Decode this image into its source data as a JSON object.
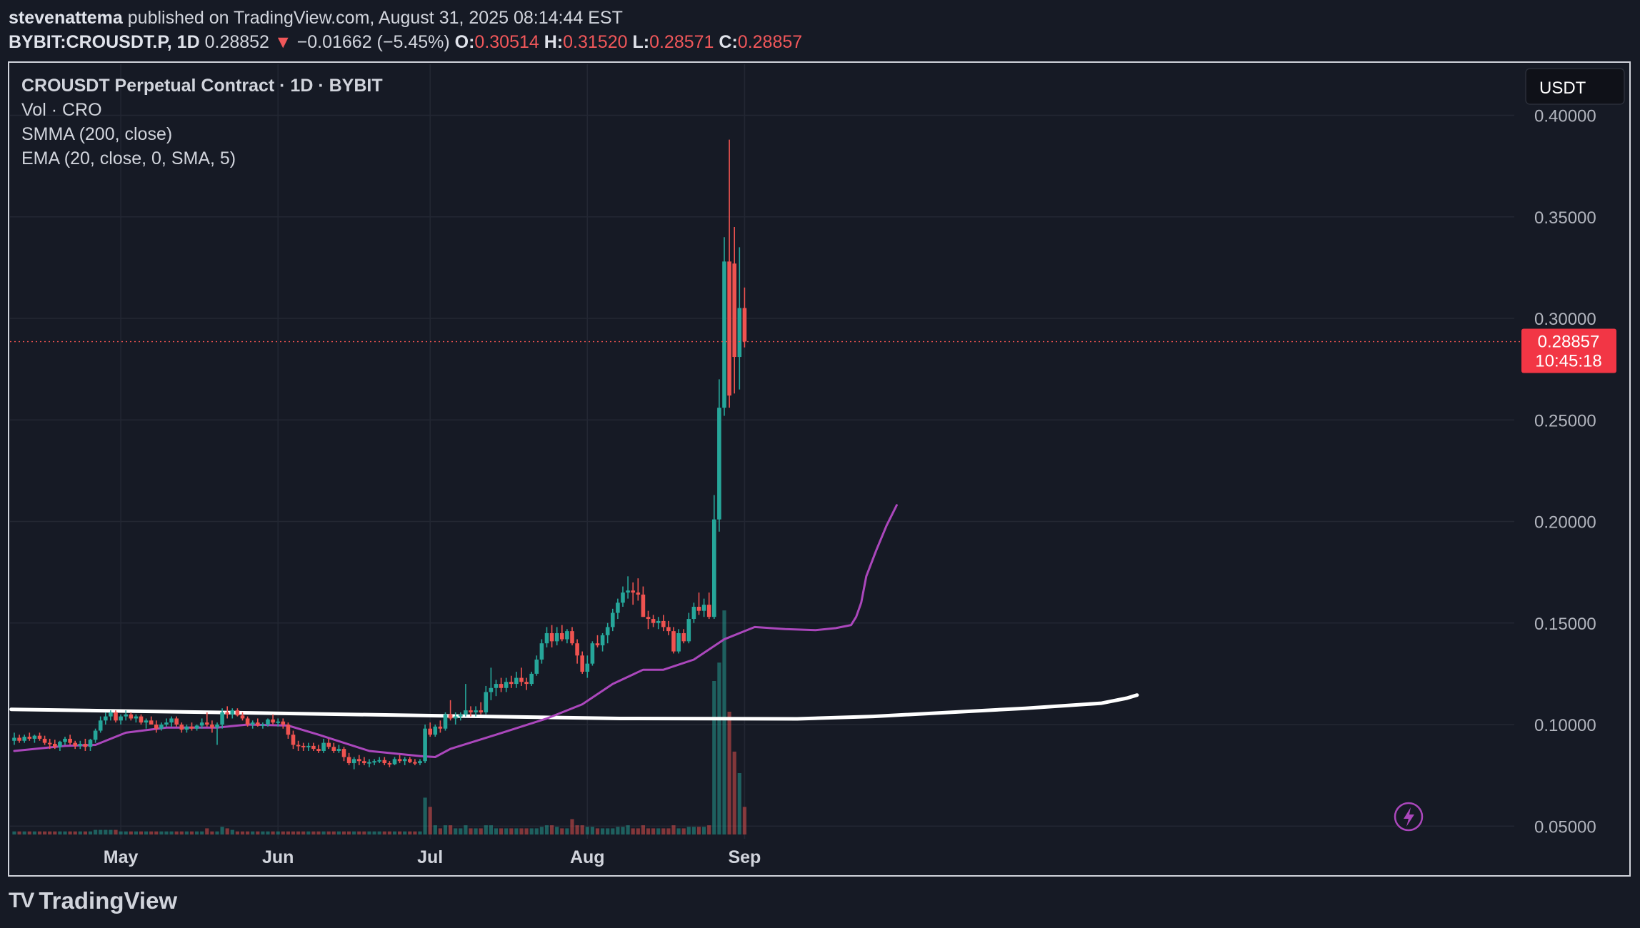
{
  "header": {
    "author": "stevenattema",
    "published": "published on TradingView.com, August 31, 2025 08:14:44 EST",
    "symbol": "BYBIT:CROUSDT.P, 1D",
    "last": "0.28852",
    "arrow": "▼",
    "change": "−0.01662 (−5.45%)",
    "o_label": "O:",
    "o_value": "0.30514",
    "h_label": "H:",
    "h_value": "0.31520",
    "l_label": "L:",
    "l_value": "0.28571",
    "c_label": "C:",
    "c_value": "0.28857"
  },
  "legend": {
    "title": "CROUSDT Perpetual Contract · 1D · BYBIT",
    "volume": "Vol · CRO",
    "smma": "SMMA (200, close)",
    "ema": "EMA (20, close, 0, SMA, 5)"
  },
  "currency_button": "USDT",
  "price_tag": {
    "price": "0.28857",
    "countdown": "10:45:18"
  },
  "footer": {
    "brand": "TradingView"
  },
  "colors": {
    "bull": "#26a69a",
    "bear": "#ef5350",
    "smma": "#ffffff",
    "ema": "#ab47bc",
    "background": "#161a25",
    "grid": "#232733",
    "text": "#d1d4dc"
  },
  "chart_data": {
    "type": "candlestick",
    "title": "CROUSDT Perpetual Contract · 1D · BYBIT",
    "y_ticks": [
      "0.40000",
      "0.35000",
      "0.30000",
      "0.25000",
      "0.20000",
      "0.15000",
      "0.10000",
      "0.05000"
    ],
    "y_values": [
      0.4,
      0.35,
      0.3,
      0.25,
      0.2,
      0.15,
      0.1,
      0.05
    ],
    "x_ticks": [
      {
        "label": "May",
        "date": "2025-05-01"
      },
      {
        "label": "Jun",
        "date": "2025-06-01"
      },
      {
        "label": "Jul",
        "date": "2025-07-01"
      },
      {
        "label": "Aug",
        "date": "2025-08-01"
      },
      {
        "label": "Sep",
        "date": "2025-09-01"
      }
    ],
    "start_date": "2025-04-10",
    "last_close": 0.28857,
    "candles": [
      [
        0.092,
        0.096,
        0.09,
        0.0935,
        1
      ],
      [
        0.0935,
        0.095,
        0.091,
        0.092,
        1
      ],
      [
        0.092,
        0.095,
        0.091,
        0.094,
        1
      ],
      [
        0.094,
        0.096,
        0.092,
        0.093,
        1
      ],
      [
        0.093,
        0.095,
        0.091,
        0.0945,
        1
      ],
      [
        0.0945,
        0.096,
        0.092,
        0.093,
        1
      ],
      [
        0.093,
        0.0945,
        0.09,
        0.091,
        1
      ],
      [
        0.091,
        0.093,
        0.088,
        0.0905,
        1
      ],
      [
        0.0905,
        0.0925,
        0.088,
        0.089,
        1
      ],
      [
        0.089,
        0.092,
        0.087,
        0.0915,
        1
      ],
      [
        0.0915,
        0.094,
        0.09,
        0.093,
        1
      ],
      [
        0.093,
        0.095,
        0.09,
        0.091,
        1
      ],
      [
        0.091,
        0.092,
        0.088,
        0.0895,
        1
      ],
      [
        0.0895,
        0.092,
        0.088,
        0.0905,
        1
      ],
      [
        0.0905,
        0.093,
        0.087,
        0.089,
        1
      ],
      [
        0.089,
        0.093,
        0.087,
        0.0925,
        1
      ],
      [
        0.0925,
        0.098,
        0.091,
        0.097,
        1.5
      ],
      [
        0.097,
        0.104,
        0.096,
        0.102,
        1.5
      ],
      [
        0.102,
        0.106,
        0.1,
        0.104,
        1.5
      ],
      [
        0.104,
        0.107,
        0.102,
        0.106,
        1.5
      ],
      [
        0.106,
        0.107,
        0.101,
        0.102,
        1.5
      ],
      [
        0.102,
        0.105,
        0.1,
        0.104,
        1
      ],
      [
        0.104,
        0.107,
        0.102,
        0.105,
        1
      ],
      [
        0.105,
        0.106,
        0.102,
        0.103,
        1
      ],
      [
        0.103,
        0.105,
        0.101,
        0.104,
        1
      ],
      [
        0.104,
        0.105,
        0.1,
        0.101,
        1
      ],
      [
        0.101,
        0.103,
        0.098,
        0.102,
        1
      ],
      [
        0.102,
        0.104,
        0.1,
        0.1,
        1
      ],
      [
        0.1,
        0.102,
        0.096,
        0.098,
        1
      ],
      [
        0.098,
        0.101,
        0.097,
        0.1,
        1
      ],
      [
        0.1,
        0.103,
        0.099,
        0.101,
        1
      ],
      [
        0.101,
        0.104,
        0.099,
        0.103,
        1
      ],
      [
        0.103,
        0.104,
        0.099,
        0.1,
        1
      ],
      [
        0.1,
        0.101,
        0.096,
        0.0975,
        1
      ],
      [
        0.0975,
        0.1,
        0.096,
        0.099,
        1
      ],
      [
        0.099,
        0.101,
        0.097,
        0.098,
        1
      ],
      [
        0.098,
        0.1,
        0.097,
        0.0995,
        1
      ],
      [
        0.0995,
        0.103,
        0.098,
        0.101,
        1
      ],
      [
        0.101,
        0.106,
        0.099,
        0.1,
        2
      ],
      [
        0.1,
        0.102,
        0.096,
        0.0985,
        1
      ],
      [
        0.0985,
        0.101,
        0.09,
        0.1,
        1
      ],
      [
        0.1,
        0.108,
        0.098,
        0.106,
        2.5
      ],
      [
        0.106,
        0.109,
        0.103,
        0.105,
        2
      ],
      [
        0.105,
        0.108,
        0.103,
        0.107,
        1.5
      ],
      [
        0.107,
        0.108,
        0.104,
        0.1045,
        1
      ],
      [
        0.1045,
        0.106,
        0.102,
        0.103,
        1
      ],
      [
        0.103,
        0.104,
        0.099,
        0.1,
        1
      ],
      [
        0.1,
        0.102,
        0.098,
        0.101,
        1
      ],
      [
        0.101,
        0.103,
        0.099,
        0.0995,
        1
      ],
      [
        0.0995,
        0.101,
        0.098,
        0.1,
        1
      ],
      [
        0.1,
        0.103,
        0.099,
        0.1025,
        1
      ],
      [
        0.1025,
        0.105,
        0.1,
        0.101,
        1
      ],
      [
        0.101,
        0.103,
        0.099,
        0.1015,
        1
      ],
      [
        0.1015,
        0.103,
        0.098,
        0.1,
        1
      ],
      [
        0.1,
        0.101,
        0.093,
        0.095,
        1
      ],
      [
        0.095,
        0.097,
        0.088,
        0.09,
        1
      ],
      [
        0.09,
        0.092,
        0.087,
        0.0895,
        1
      ],
      [
        0.0895,
        0.091,
        0.087,
        0.089,
        1
      ],
      [
        0.089,
        0.091,
        0.087,
        0.0895,
        1
      ],
      [
        0.0895,
        0.091,
        0.087,
        0.088,
        1
      ],
      [
        0.088,
        0.09,
        0.086,
        0.087,
        1
      ],
      [
        0.087,
        0.093,
        0.086,
        0.091,
        1
      ],
      [
        0.091,
        0.093,
        0.088,
        0.089,
        1
      ],
      [
        0.089,
        0.091,
        0.086,
        0.087,
        1
      ],
      [
        0.087,
        0.09,
        0.086,
        0.088,
        1
      ],
      [
        0.088,
        0.089,
        0.082,
        0.084,
        1
      ],
      [
        0.084,
        0.086,
        0.08,
        0.081,
        1
      ],
      [
        0.081,
        0.084,
        0.078,
        0.083,
        1
      ],
      [
        0.083,
        0.085,
        0.08,
        0.082,
        1
      ],
      [
        0.082,
        0.084,
        0.08,
        0.081,
        1
      ],
      [
        0.081,
        0.083,
        0.079,
        0.0815,
        1
      ],
      [
        0.0815,
        0.083,
        0.08,
        0.082,
        1
      ],
      [
        0.082,
        0.084,
        0.081,
        0.0825,
        1
      ],
      [
        0.0825,
        0.084,
        0.08,
        0.081,
        1
      ],
      [
        0.081,
        0.082,
        0.079,
        0.0805,
        1
      ],
      [
        0.0805,
        0.084,
        0.08,
        0.083,
        1
      ],
      [
        0.083,
        0.085,
        0.081,
        0.082,
        1
      ],
      [
        0.082,
        0.084,
        0.08,
        0.083,
        1
      ],
      [
        0.083,
        0.084,
        0.081,
        0.0815,
        1
      ],
      [
        0.0815,
        0.083,
        0.08,
        0.081,
        1
      ],
      [
        0.081,
        0.083,
        0.08,
        0.082,
        1
      ],
      [
        0.082,
        0.1,
        0.081,
        0.098,
        12
      ],
      [
        0.098,
        0.101,
        0.094,
        0.095,
        9
      ],
      [
        0.095,
        0.1,
        0.094,
        0.099,
        3
      ],
      [
        0.099,
        0.102,
        0.096,
        0.098,
        2
      ],
      [
        0.098,
        0.106,
        0.097,
        0.105,
        3
      ],
      [
        0.105,
        0.112,
        0.102,
        0.103,
        3
      ],
      [
        0.103,
        0.106,
        0.1,
        0.104,
        2
      ],
      [
        0.104,
        0.106,
        0.102,
        0.105,
        2
      ],
      [
        0.105,
        0.12,
        0.104,
        0.107,
        3
      ],
      [
        0.107,
        0.109,
        0.104,
        0.106,
        2
      ],
      [
        0.106,
        0.109,
        0.104,
        0.107,
        2
      ],
      [
        0.107,
        0.111,
        0.105,
        0.106,
        2
      ],
      [
        0.106,
        0.119,
        0.105,
        0.116,
        3
      ],
      [
        0.116,
        0.128,
        0.112,
        0.118,
        3
      ],
      [
        0.118,
        0.122,
        0.114,
        0.12,
        2
      ],
      [
        0.12,
        0.123,
        0.116,
        0.118,
        2
      ],
      [
        0.118,
        0.123,
        0.116,
        0.121,
        2
      ],
      [
        0.121,
        0.124,
        0.118,
        0.12,
        2
      ],
      [
        0.12,
        0.126,
        0.118,
        0.123,
        2
      ],
      [
        0.123,
        0.128,
        0.119,
        0.121,
        2
      ],
      [
        0.121,
        0.123,
        0.117,
        0.12,
        2
      ],
      [
        0.12,
        0.126,
        0.119,
        0.125,
        2
      ],
      [
        0.125,
        0.134,
        0.124,
        0.132,
        2
      ],
      [
        0.132,
        0.142,
        0.13,
        0.14,
        2.5
      ],
      [
        0.14,
        0.148,
        0.138,
        0.145,
        3
      ],
      [
        0.145,
        0.149,
        0.138,
        0.141,
        3
      ],
      [
        0.141,
        0.148,
        0.139,
        0.145,
        2.5
      ],
      [
        0.145,
        0.149,
        0.141,
        0.142,
        2
      ],
      [
        0.142,
        0.147,
        0.14,
        0.146,
        2
      ],
      [
        0.146,
        0.148,
        0.139,
        0.14,
        5
      ],
      [
        0.14,
        0.142,
        0.13,
        0.134,
        3
      ],
      [
        0.134,
        0.136,
        0.125,
        0.126,
        3
      ],
      [
        0.126,
        0.134,
        0.123,
        0.13,
        2.5
      ],
      [
        0.13,
        0.141,
        0.129,
        0.14,
        2.5
      ],
      [
        0.14,
        0.144,
        0.138,
        0.139,
        2
      ],
      [
        0.139,
        0.145,
        0.136,
        0.144,
        2
      ],
      [
        0.144,
        0.15,
        0.14,
        0.148,
        2
      ],
      [
        0.148,
        0.157,
        0.146,
        0.155,
        2
      ],
      [
        0.155,
        0.162,
        0.152,
        0.16,
        2.5
      ],
      [
        0.16,
        0.168,
        0.158,
        0.165,
        2.5
      ],
      [
        0.165,
        0.173,
        0.162,
        0.166,
        3
      ],
      [
        0.166,
        0.17,
        0.159,
        0.165,
        2
      ],
      [
        0.165,
        0.172,
        0.161,
        0.164,
        2
      ],
      [
        0.164,
        0.168,
        0.153,
        0.153,
        3
      ],
      [
        0.153,
        0.156,
        0.147,
        0.152,
        2
      ],
      [
        0.152,
        0.154,
        0.148,
        0.15,
        2
      ],
      [
        0.15,
        0.153,
        0.147,
        0.151,
        2
      ],
      [
        0.151,
        0.154,
        0.146,
        0.148,
        2
      ],
      [
        0.148,
        0.151,
        0.144,
        0.146,
        2
      ],
      [
        0.146,
        0.148,
        0.135,
        0.136,
        3
      ],
      [
        0.136,
        0.147,
        0.135,
        0.145,
        2
      ],
      [
        0.145,
        0.147,
        0.14,
        0.141,
        2
      ],
      [
        0.141,
        0.155,
        0.14,
        0.152,
        2.5
      ],
      [
        0.152,
        0.16,
        0.15,
        0.158,
        2.5
      ],
      [
        0.158,
        0.165,
        0.154,
        0.156,
        2.5
      ],
      [
        0.156,
        0.162,
        0.153,
        0.159,
        2.5
      ],
      [
        0.159,
        0.165,
        0.152,
        0.153,
        3
      ],
      [
        0.153,
        0.213,
        0.152,
        0.201,
        50
      ],
      [
        0.201,
        0.27,
        0.195,
        0.256,
        56
      ],
      [
        0.256,
        0.34,
        0.252,
        0.328,
        73
      ],
      [
        0.328,
        0.388,
        0.256,
        0.262,
        40
      ],
      [
        0.327,
        0.345,
        0.263,
        0.281,
        27
      ],
      [
        0.281,
        0.335,
        0.265,
        0.3051,
        20
      ],
      [
        0.3051,
        0.3152,
        0.2857,
        0.2886,
        9
      ]
    ],
    "smma_200": [
      [
        0,
        0.1075
      ],
      [
        40,
        0.106
      ],
      [
        120,
        0.103
      ],
      [
        155,
        0.1028
      ],
      [
        170,
        0.104
      ],
      [
        200,
        0.108
      ],
      [
        215,
        0.1105
      ],
      [
        220,
        0.113
      ],
      [
        222,
        0.1145
      ]
    ],
    "ema_20": [
      [
        0,
        0.087
      ],
      [
        10,
        0.0895
      ],
      [
        16,
        0.09
      ],
      [
        22,
        0.096
      ],
      [
        30,
        0.0985
      ],
      [
        40,
        0.0985
      ],
      [
        46,
        0.1
      ],
      [
        54,
        0.0995
      ],
      [
        60,
        0.095
      ],
      [
        70,
        0.087
      ],
      [
        80,
        0.0845
      ],
      [
        83,
        0.084
      ],
      [
        86,
        0.088
      ],
      [
        95,
        0.095
      ],
      [
        105,
        0.103
      ],
      [
        112,
        0.11
      ],
      [
        118,
        0.12
      ],
      [
        124,
        0.127
      ],
      [
        128,
        0.127
      ],
      [
        134,
        0.132
      ],
      [
        140,
        0.142
      ],
      [
        146,
        0.148
      ],
      [
        152,
        0.147
      ],
      [
        158,
        0.1465
      ],
      [
        162,
        0.1475
      ],
      [
        165,
        0.149
      ],
      [
        166,
        0.153
      ],
      [
        167,
        0.16
      ],
      [
        168,
        0.173
      ],
      [
        170,
        0.186
      ],
      [
        172,
        0.198
      ],
      [
        174,
        0.208
      ]
    ]
  }
}
